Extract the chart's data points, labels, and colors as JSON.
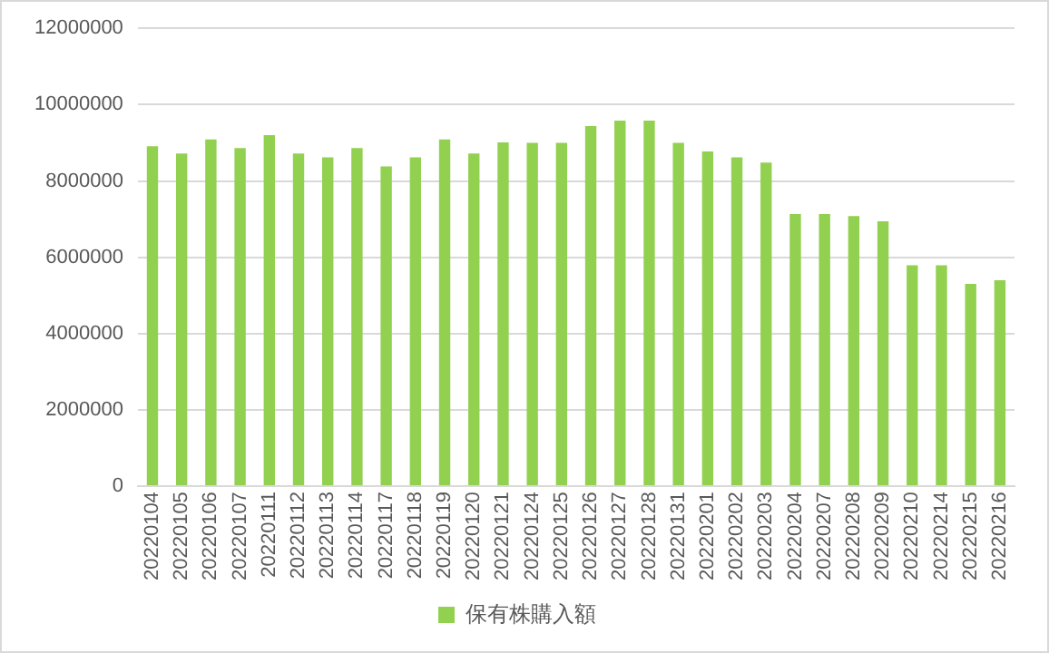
{
  "chart_data": {
    "type": "bar",
    "categories": [
      "20220104",
      "20220105",
      "20220106",
      "20220107",
      "20220111",
      "20220112",
      "20220113",
      "20220114",
      "20220117",
      "20220118",
      "20220119",
      "20220120",
      "20220121",
      "20220124",
      "20220125",
      "20220126",
      "20220127",
      "20220128",
      "20220131",
      "20220201",
      "20220202",
      "20220203",
      "20220204",
      "20220207",
      "20220208",
      "20220209",
      "20220210",
      "20220214",
      "20220215",
      "20220216"
    ],
    "series": [
      {
        "name": "保有株購入額",
        "color": "#92d050",
        "values": [
          8910000,
          8720000,
          9090000,
          8860000,
          9200000,
          8720000,
          8620000,
          8860000,
          8380000,
          8620000,
          9090000,
          8720000,
          9010000,
          9000000,
          9000000,
          9440000,
          9580000,
          9580000,
          9000000,
          8770000,
          8620000,
          8480000,
          7130000,
          7130000,
          7080000,
          6940000,
          5790000,
          5790000,
          5300000,
          5400000
        ]
      }
    ],
    "ylim": [
      0,
      12000000
    ],
    "yticks": [
      0,
      2000000,
      4000000,
      6000000,
      8000000,
      10000000,
      12000000
    ],
    "grid": "y",
    "legend": "bottom"
  }
}
